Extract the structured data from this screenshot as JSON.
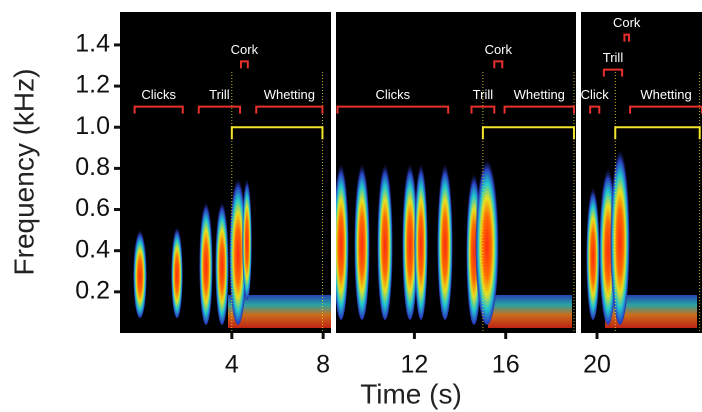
{
  "chart_data": {
    "type": "spectrogram",
    "xlabel": "Time (s)",
    "ylabel": "Frequency (kHz)",
    "xlim": [
      -0.9,
      24.6
    ],
    "ylim": [
      0,
      1.56
    ],
    "xticks": [
      4,
      8,
      12,
      16,
      20
    ],
    "yticks": [
      0.2,
      0.4,
      0.6,
      0.8,
      {
        "value": 1,
        "label": "1.0"
      },
      1.2,
      1.4
    ],
    "annotation_color": "#e8302c",
    "annotations": [
      {
        "label": "Clicks",
        "x": [
          -0.26,
          1.85
        ],
        "y": 1.1
      },
      {
        "label": "Trill",
        "x": [
          2.55,
          4.36
        ],
        "y": 1.1
      },
      {
        "label": "Cork",
        "x": [
          4.4,
          4.7
        ],
        "y": 1.32
      },
      {
        "label": "Whetting",
        "x": [
          5.07,
          7.97
        ],
        "y": 1.1
      },
      {
        "label": "Clicks",
        "x": [
          8.63,
          13.48
        ],
        "y": 1.1
      },
      {
        "label": "Trill",
        "x": [
          14.5,
          15.5
        ],
        "y": 1.1
      },
      {
        "label": "Cork",
        "x": [
          15.5,
          15.85
        ],
        "y": 1.32
      },
      {
        "label": "Whetting",
        "x": [
          15.95,
          18.99
        ],
        "y": 1.1
      },
      {
        "label": "Click",
        "x": [
          19.7,
          20.1
        ],
        "y": 1.1
      },
      {
        "label": "Trill",
        "x": [
          20.3,
          21.1
        ],
        "y": 1.28
      },
      {
        "label": "Cork",
        "x": [
          21.2,
          21.4
        ],
        "y": 1.45
      },
      {
        "label": "Whetting",
        "x": [
          21.45,
          24.6
        ],
        "y": 1.1
      }
    ],
    "span_color": "#f5e52a",
    "spans": {
      "x": [
        [
          4,
          7.97
        ],
        [
          15,
          18.99
        ],
        [
          20.8,
          24.5
        ]
      ],
      "y": 1.0
    }
  }
}
